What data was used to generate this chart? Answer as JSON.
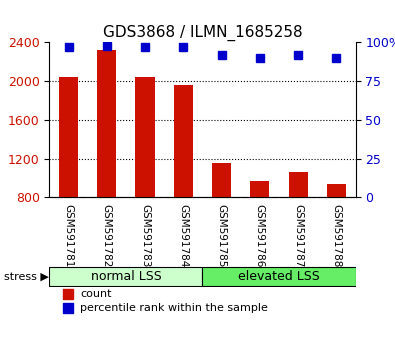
{
  "title": "GDS3868 / ILMN_1685258",
  "samples": [
    "GSM591781",
    "GSM591782",
    "GSM591783",
    "GSM591784",
    "GSM591785",
    "GSM591786",
    "GSM591787",
    "GSM591788"
  ],
  "counts": [
    2040,
    2320,
    2040,
    1960,
    1150,
    970,
    1060,
    940
  ],
  "percentile_ranks": [
    97,
    98,
    97,
    97,
    92,
    90,
    92,
    90
  ],
  "ymin": 800,
  "ymax": 2400,
  "yticks": [
    800,
    1200,
    1600,
    2000,
    2400
  ],
  "right_yticks": [
    0,
    25,
    50,
    75,
    100
  ],
  "bar_color": "#cc1100",
  "dot_color": "#0000cc",
  "group1_label": "normal LSS",
  "group2_label": "elevated LSS",
  "group1_indices": [
    0,
    1,
    2,
    3
  ],
  "group2_indices": [
    4,
    5,
    6,
    7
  ],
  "group1_bg": "#ccffcc",
  "group2_bg": "#66ee66",
  "stress_label": "stress",
  "legend_count_label": "count",
  "legend_pct_label": "percentile rank within the sample",
  "xlabel_area_bg": "#cccccc",
  "plot_bg": "#ffffff",
  "bar_width": 0.5
}
